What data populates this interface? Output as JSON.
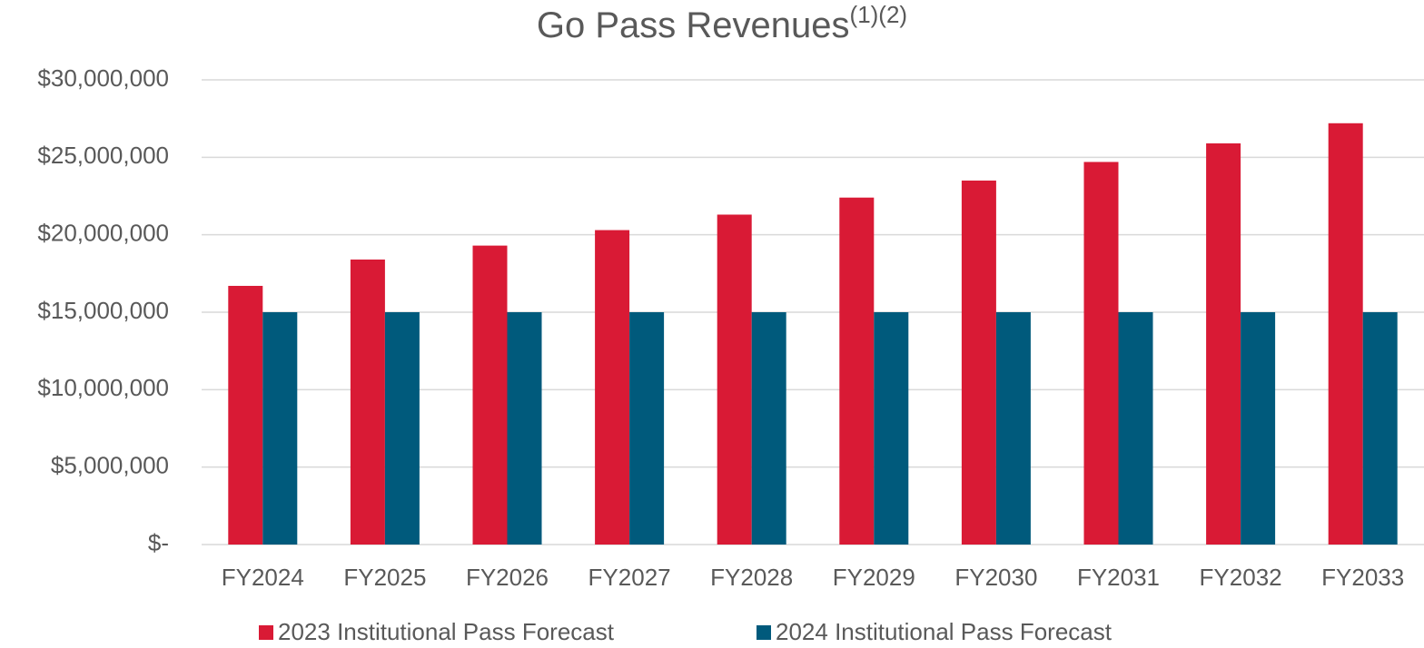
{
  "chart_data": {
    "type": "bar",
    "title": "Go Pass Revenues",
    "title_superscript": "(1)(2)",
    "categories": [
      "FY2024",
      "FY2025",
      "FY2026",
      "FY2027",
      "FY2028",
      "FY2029",
      "FY2030",
      "FY2031",
      "FY2032",
      "FY2033"
    ],
    "series": [
      {
        "name": "2023 Institutional Pass Forecast",
        "color": "#d91a35",
        "values": [
          16700000,
          18400000,
          19300000,
          20300000,
          21300000,
          22400000,
          23500000,
          24700000,
          25900000,
          27200000
        ]
      },
      {
        "name": "2024 Institutional Pass Forecast",
        "color": "#005a7c",
        "values": [
          15000000,
          15000000,
          15000000,
          15000000,
          15000000,
          15000000,
          15000000,
          15000000,
          15000000,
          15000000
        ]
      }
    ],
    "ylim": [
      0,
      30000000
    ],
    "yticks": [
      {
        "value": 0,
        "label": "$-"
      },
      {
        "value": 5000000,
        "label": "$5,000,000"
      },
      {
        "value": 10000000,
        "label": "$10,000,000"
      },
      {
        "value": 15000000,
        "label": "$15,000,000"
      },
      {
        "value": 20000000,
        "label": "$20,000,000"
      },
      {
        "value": 25000000,
        "label": "$25,000,000"
      },
      {
        "value": 30000000,
        "label": "$30,000,000"
      }
    ],
    "grid": true,
    "legend": "bottom"
  }
}
